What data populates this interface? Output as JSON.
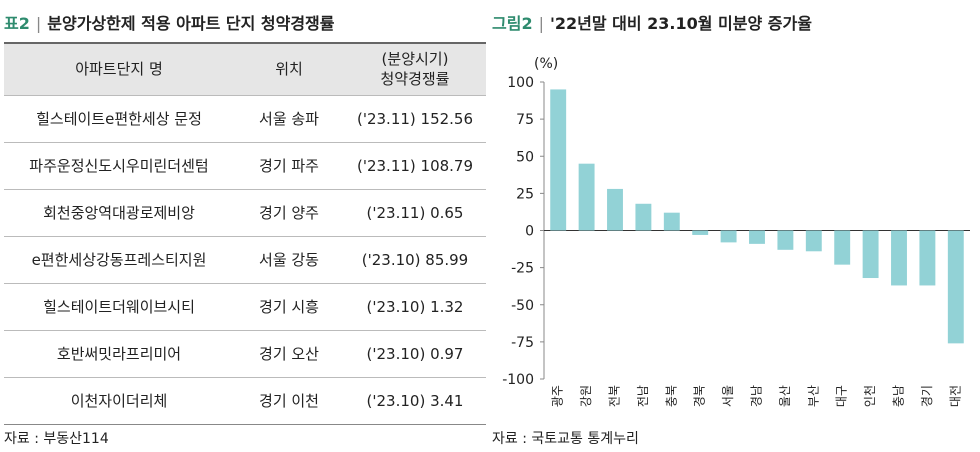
{
  "left_panel": {
    "title_num": "표2",
    "title_text": "분양가상한제 적용 아파트 단지 청약경쟁률",
    "headers": {
      "name": "아파트단지 명",
      "location": "위치",
      "rate_line1": "(분양시기)",
      "rate_line2": "청약경쟁률"
    },
    "rows": [
      {
        "name": "힐스테이트e편한세상 문정",
        "location": "서울 송파",
        "rate": "('23.11) 152.56"
      },
      {
        "name": "파주운정신도시우미린더센텀",
        "location": "경기 파주",
        "rate": "('23.11) 108.79"
      },
      {
        "name": "회천중앙역대광로제비앙",
        "location": "경기 양주",
        "rate": "('23.11) 0.65"
      },
      {
        "name": "e편한세상강동프레스티지원",
        "location": "서울 강동",
        "rate": "('23.10) 85.99"
      },
      {
        "name": "힐스테이트더웨이브시티",
        "location": "경기 시흥",
        "rate": "('23.10) 1.32"
      },
      {
        "name": "호반써밋라프리미어",
        "location": "경기 오산",
        "rate": "('23.10) 0.97"
      },
      {
        "name": "이천자이더리체",
        "location": "경기 이천",
        "rate": "('23.10) 3.41"
      }
    ],
    "source": "자료 : 부동산114"
  },
  "right_panel": {
    "title_num": "그림2",
    "title_text": "'22년말 대비 23.10월 미분양 증가율",
    "source": "자료 : 국토교통 통계누리"
  },
  "chart_data": {
    "type": "bar",
    "title": "'22년말 대비 23.10월 미분양 증가율",
    "ylabel": "(%)",
    "ylim": [
      -100,
      100
    ],
    "yticks": [
      100,
      75,
      50,
      25,
      0,
      -25,
      -50,
      -75,
      -100
    ],
    "grid": false,
    "categories": [
      "광주",
      "강원",
      "전북",
      "전남",
      "충북",
      "경북",
      "서울",
      "경남",
      "울산",
      "부산",
      "대구",
      "인천",
      "충남",
      "경기",
      "대전"
    ],
    "values": [
      95,
      45,
      28,
      18,
      12,
      -3,
      -8,
      -9,
      -13,
      -14,
      -23,
      -32,
      -37,
      -37,
      -76
    ],
    "bar_color": "#92d2d6"
  }
}
